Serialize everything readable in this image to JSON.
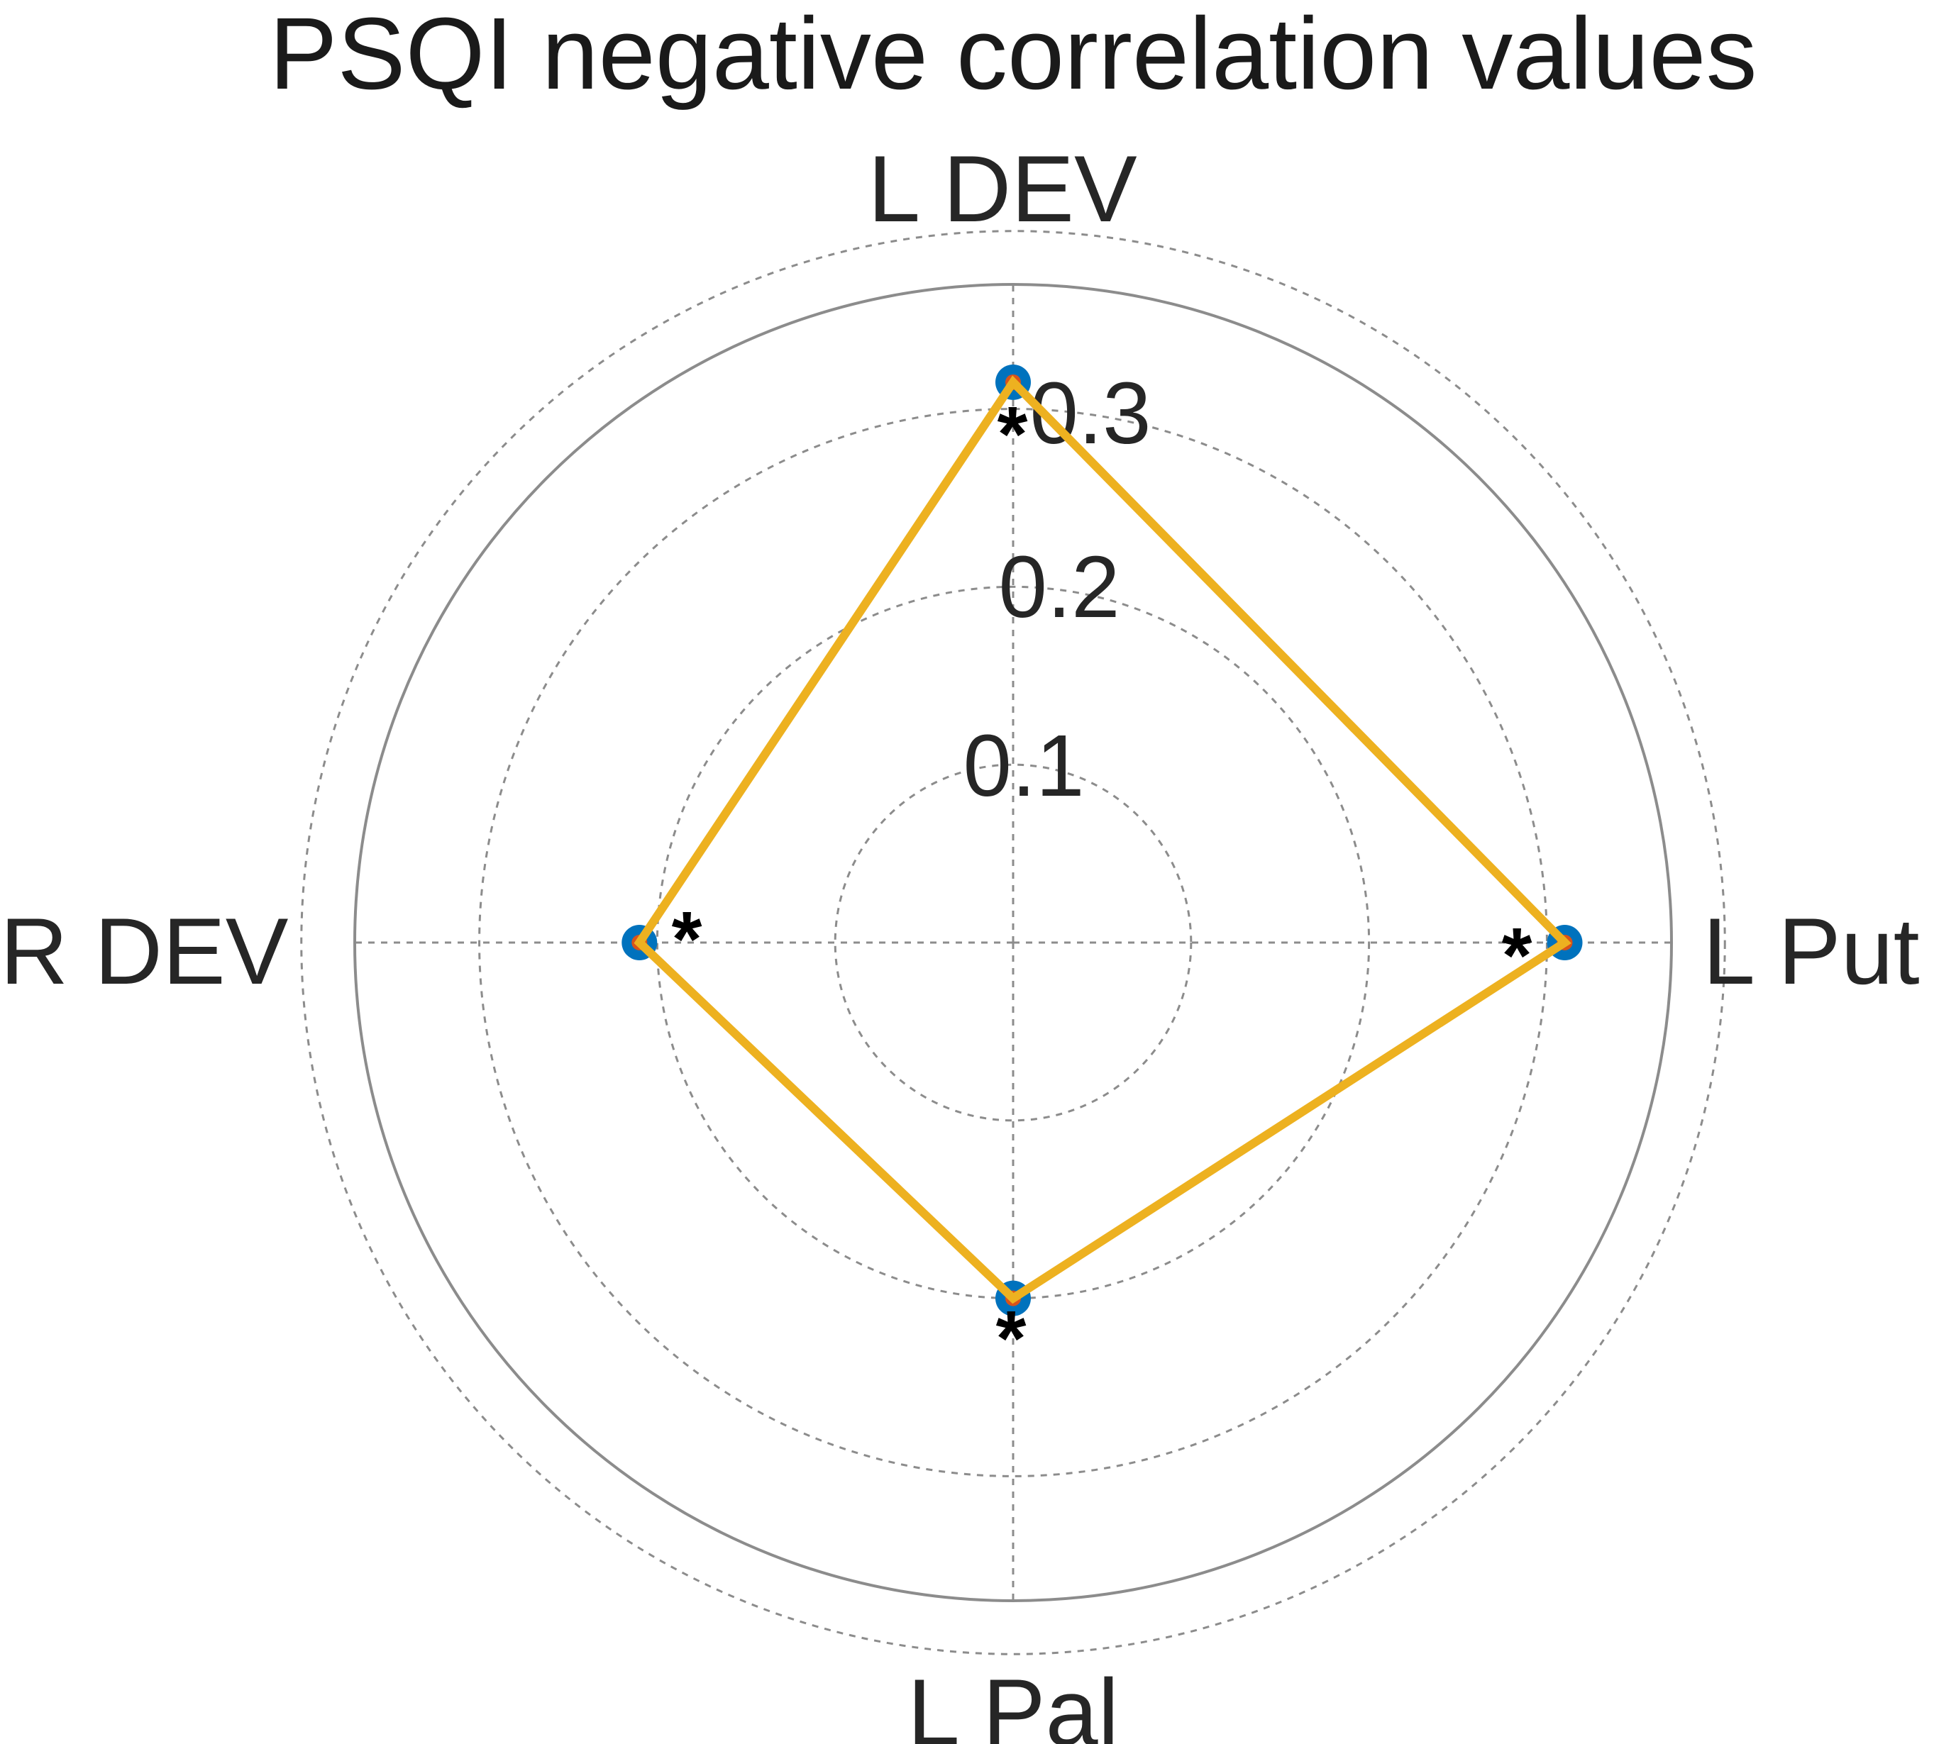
{
  "chart_data": {
    "type": "radar",
    "title": "PSQI negative correlation values",
    "axes": [
      "L DEV",
      "L Put",
      "L Pal",
      "R DEV"
    ],
    "rlim": [
      0,
      0.37
    ],
    "rticks": [
      0.1,
      0.2,
      0.3
    ],
    "rtick_labels": [
      "0.1",
      "0.2",
      "0.3"
    ],
    "series": [
      {
        "values": [
          0.315,
          0.31,
          0.2,
          0.21
        ]
      }
    ],
    "significance": [
      "*",
      "*",
      "*",
      "*"
    ],
    "grid": true,
    "colors": {
      "line": "#EDB120",
      "marker": "#0072BD",
      "marker_inner": "#D95319",
      "grid": "#8c8c8c",
      "outer_ring": "#8c8c8c"
    }
  }
}
